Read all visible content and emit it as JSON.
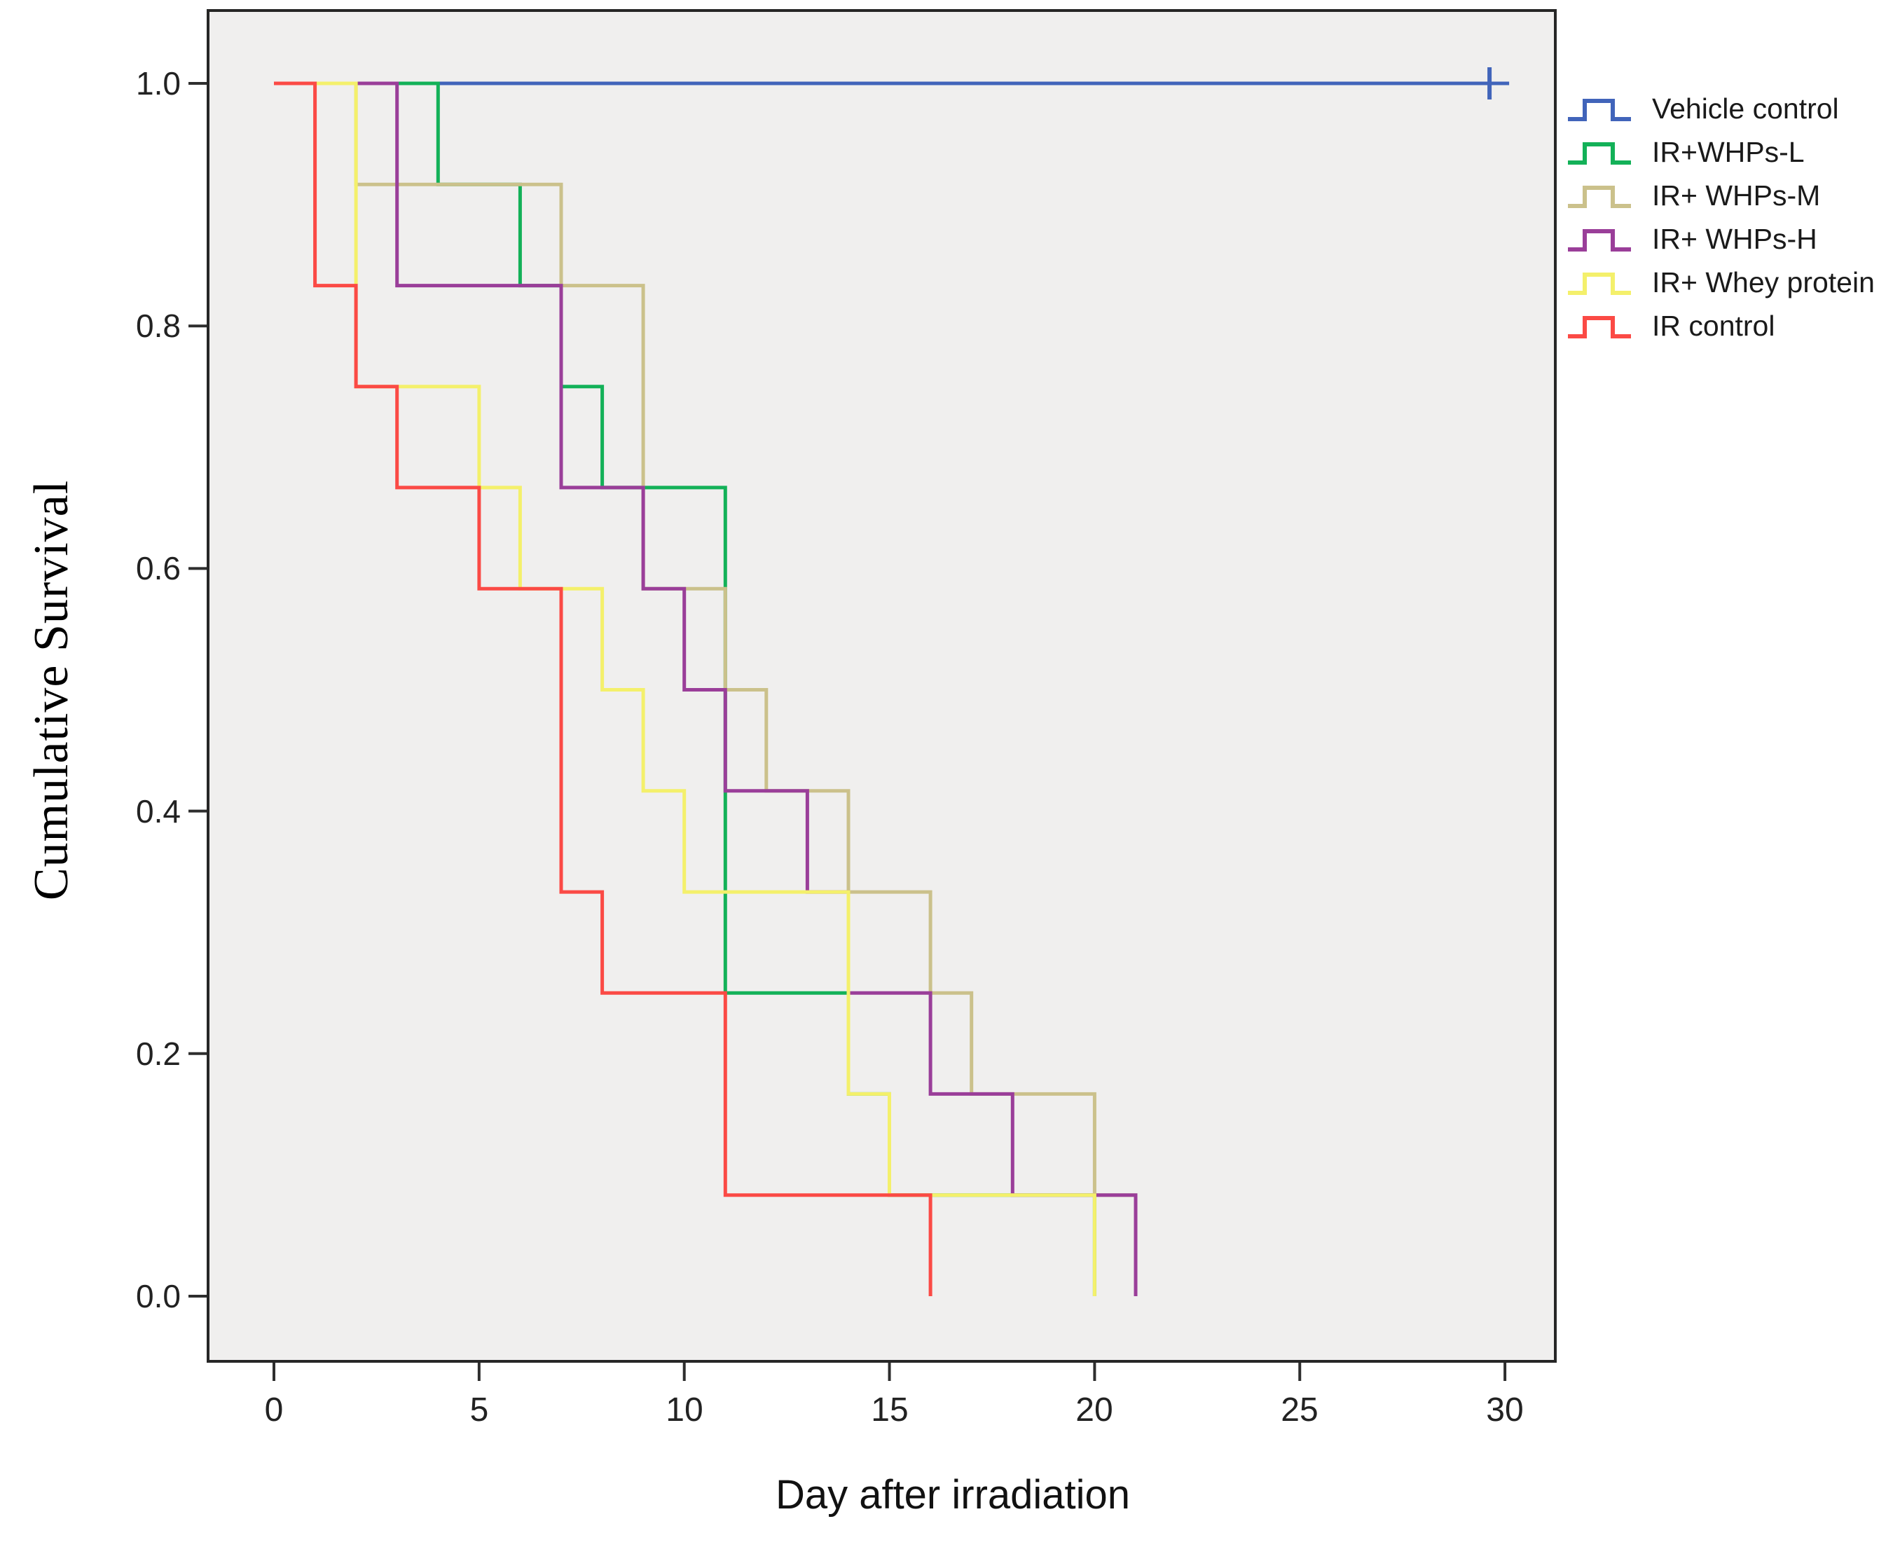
{
  "axes": {
    "x": {
      "label": "Day after irradiation",
      "ticks": [
        "0",
        "5",
        "10",
        "15",
        "20",
        "25",
        "30"
      ]
    },
    "y": {
      "label": "Cumulative Survival",
      "ticks": [
        "1.0",
        "0.8",
        "0.6",
        "0.4",
        "0.2",
        "0.0"
      ]
    }
  },
  "chart_data": {
    "type": "line",
    "subtype": "kaplan-meier-step",
    "xlabel": "Day after irradiation",
    "ylabel": "Cumulative Survival",
    "xlim": [
      0,
      30
    ],
    "ylim": [
      0.0,
      1.0
    ],
    "x_tick_values": [
      0,
      5,
      10,
      15,
      20,
      25,
      30
    ],
    "y_tick_values": [
      1.0,
      0.8,
      0.6,
      0.4,
      0.2,
      0.0
    ],
    "grid": "off",
    "legend_position": "outside-top-right",
    "plot_background": "#F0EFEE",
    "series": [
      {
        "name": "Vehicle control",
        "color": "#4164BA",
        "end_day": 30,
        "censor_days": [
          30
        ],
        "steps": [
          [
            0,
            1.0
          ]
        ]
      },
      {
        "name": "IR+WHPs-L",
        "color": "#13B158",
        "steps": [
          [
            0,
            1.0
          ],
          [
            4,
            0.9167
          ],
          [
            6,
            0.8333
          ],
          [
            7,
            0.75
          ],
          [
            8,
            0.6667
          ],
          [
            11,
            0.25
          ],
          [
            14,
            0.1667
          ],
          [
            15,
            0.0833
          ],
          [
            20,
            0.0
          ]
        ]
      },
      {
        "name": "IR+ WHPs-M",
        "color": "#CBC18B",
        "steps": [
          [
            0,
            1.0
          ],
          [
            2,
            0.9167
          ],
          [
            7,
            0.8333
          ],
          [
            9,
            0.5833
          ],
          [
            11,
            0.5
          ],
          [
            12,
            0.4167
          ],
          [
            14,
            0.3333
          ],
          [
            16,
            0.25
          ],
          [
            17,
            0.1667
          ],
          [
            20,
            0.0833
          ],
          [
            21,
            0.0
          ]
        ]
      },
      {
        "name": "IR+ WHPs-H",
        "color": "#9A3E99",
        "steps": [
          [
            0,
            1.0
          ],
          [
            3,
            0.8333
          ],
          [
            7,
            0.6667
          ],
          [
            9,
            0.5833
          ],
          [
            10,
            0.5
          ],
          [
            11,
            0.4167
          ],
          [
            13,
            0.3333
          ],
          [
            14,
            0.25
          ],
          [
            16,
            0.1667
          ],
          [
            18,
            0.0833
          ],
          [
            21,
            0.0
          ]
        ]
      },
      {
        "name": "IR+ Whey protein",
        "color": "#F4F06B",
        "steps": [
          [
            0,
            1.0
          ],
          [
            2,
            0.75
          ],
          [
            5,
            0.6667
          ],
          [
            6,
            0.5833
          ],
          [
            8,
            0.5
          ],
          [
            9,
            0.4167
          ],
          [
            10,
            0.3333
          ],
          [
            14,
            0.1667
          ],
          [
            15,
            0.0833
          ],
          [
            20,
            0.0
          ]
        ]
      },
      {
        "name": "IR control",
        "color": "#FB4A45",
        "steps": [
          [
            0,
            1.0
          ],
          [
            1,
            0.8333
          ],
          [
            2,
            0.75
          ],
          [
            3,
            0.6667
          ],
          [
            5,
            0.5833
          ],
          [
            7,
            0.3333
          ],
          [
            8,
            0.25
          ],
          [
            11,
            0.0833
          ],
          [
            16,
            0.0
          ]
        ]
      }
    ]
  }
}
